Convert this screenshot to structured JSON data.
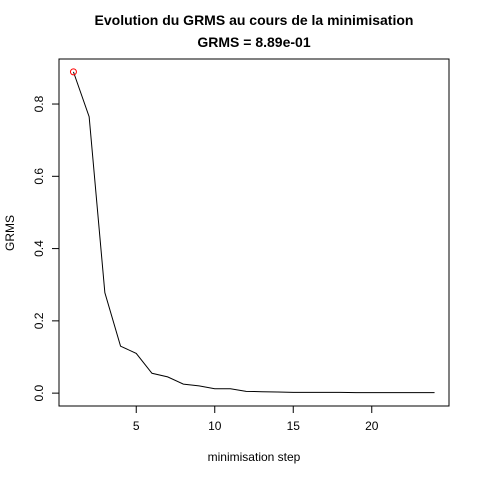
{
  "chart_data": {
    "type": "line",
    "title": "Evolution du GRMS au cours de la minimisation",
    "subtitle": "GRMS = 8.89e-01",
    "xlabel": "minimisation step",
    "ylabel": "GRMS",
    "xlim": [
      0.08,
      24.92
    ],
    "ylim": [
      -0.0356,
      0.9246
    ],
    "x_ticks": [
      5,
      10,
      15,
      20
    ],
    "y_ticks": [
      0.0,
      0.2,
      0.4,
      0.6,
      0.8
    ],
    "x_tick_labels": [
      "5",
      "10",
      "15",
      "20"
    ],
    "y_tick_labels": [
      "0.0",
      "0.2",
      "0.4",
      "0.6",
      "0.8"
    ],
    "grid": false,
    "legend": "none",
    "x": [
      1,
      2,
      3,
      4,
      5,
      6,
      7,
      8,
      9,
      10,
      11,
      12,
      13,
      14,
      15,
      16,
      17,
      18,
      19,
      20,
      21,
      22,
      23,
      24
    ],
    "series": [
      {
        "values": [
          0.889,
          0.765,
          0.278,
          0.13,
          0.11,
          0.055,
          0.045,
          0.025,
          0.02,
          0.012,
          0.012,
          0.005,
          0.004,
          0.003,
          0.002,
          0.002,
          0.002,
          0.002,
          0.0015,
          0.0015,
          0.0015,
          0.0015,
          0.0015,
          0.0015
        ],
        "color": "#000000"
      }
    ],
    "highlight_point": {
      "x": 1,
      "y": 0.889,
      "color": "#ff0000",
      "marker": "open-circle"
    }
  }
}
